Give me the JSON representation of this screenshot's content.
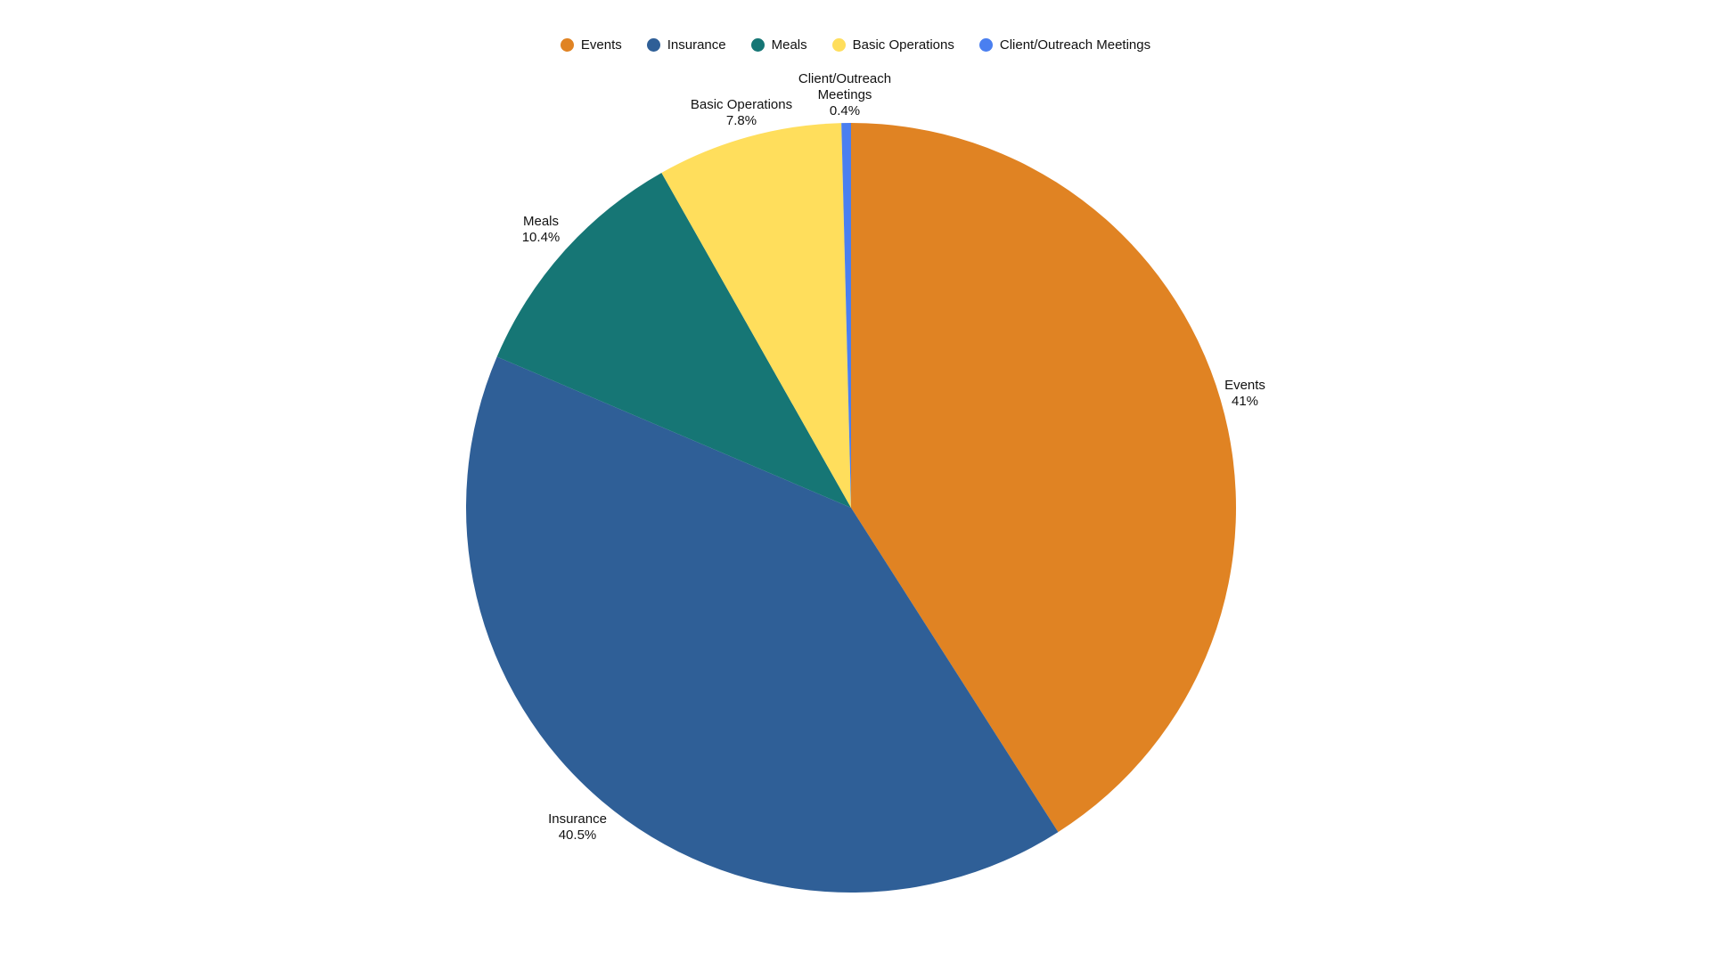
{
  "chart_data": {
    "type": "pie",
    "legend_position": "top-center",
    "slices": [
      {
        "label": "Events",
        "value": 41,
        "display": "41%",
        "color": "#E08323"
      },
      {
        "label": "Insurance",
        "value": 40.5,
        "display": "40.5%",
        "color": "#2F5F97"
      },
      {
        "label": "Meals",
        "value": 10.4,
        "display": "10.4%",
        "color": "#167675"
      },
      {
        "label": "Basic Operations",
        "value": 7.8,
        "display": "7.8%",
        "color": "#FFDE5C"
      },
      {
        "label": "Client/Outreach Meetings",
        "value": 0.4,
        "display": "0.4%",
        "color": "#4A7FF0"
      }
    ]
  }
}
